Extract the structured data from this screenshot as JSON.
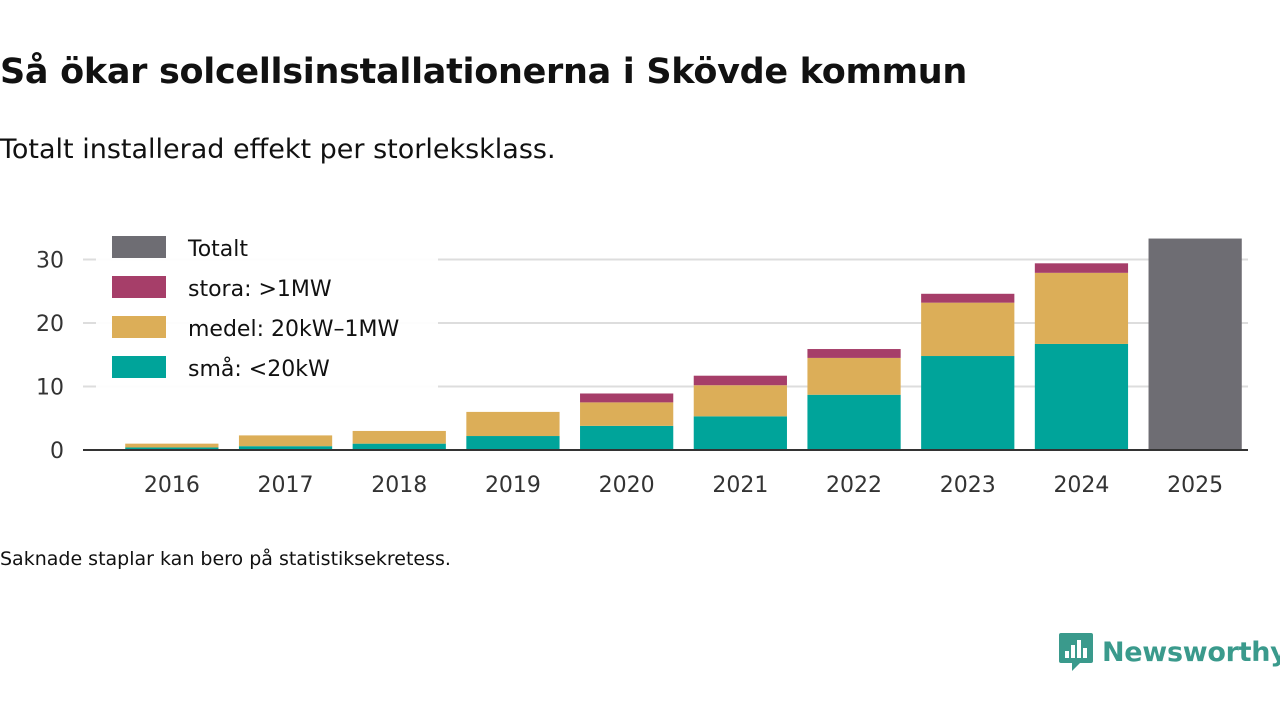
{
  "title": "Så ökar solcellsinstallationerna i Skövde kommun",
  "subtitle": "Totalt installerad effekt per storleksklass.",
  "footnote": "Saknade staplar kan bero på statistiksekretess.",
  "brand": {
    "name": "Newsworthy",
    "icon": "newsworthy-logo-icon",
    "color": "#3a9a8c"
  },
  "chart_data": {
    "type": "bar",
    "stacked": true,
    "title": "",
    "xlabel": "",
    "ylabel": "",
    "ylim": [
      0,
      34
    ],
    "yticks": [
      0,
      10,
      20,
      30
    ],
    "grid": true,
    "legend_position": "top-left",
    "categories": [
      "2016",
      "2017",
      "2018",
      "2019",
      "2020",
      "2021",
      "2022",
      "2023",
      "2024",
      "2025"
    ],
    "series": [
      {
        "name": "små: <20kW",
        "color": "#00a49a",
        "values": [
          0.4,
          0.6,
          1.0,
          2.2,
          3.8,
          5.3,
          8.7,
          14.8,
          16.7,
          null
        ]
      },
      {
        "name": "medel: 20kW–1MW",
        "color": "#dcae58",
        "values": [
          0.6,
          1.7,
          2.0,
          3.8,
          3.7,
          4.9,
          5.8,
          8.4,
          11.2,
          null
        ]
      },
      {
        "name": "stora: >1MW",
        "color": "#a63e69",
        "values": [
          0,
          0,
          0,
          0,
          1.4,
          1.5,
          1.4,
          1.4,
          1.5,
          null
        ]
      },
      {
        "name": "Totalt",
        "color": "#6e6d73",
        "values": [
          null,
          null,
          null,
          null,
          null,
          null,
          null,
          null,
          null,
          33.3
        ]
      }
    ],
    "legend": [
      "Totalt",
      "stora: >1MW",
      "medel: 20kW–1MW",
      "små: <20kW"
    ]
  }
}
